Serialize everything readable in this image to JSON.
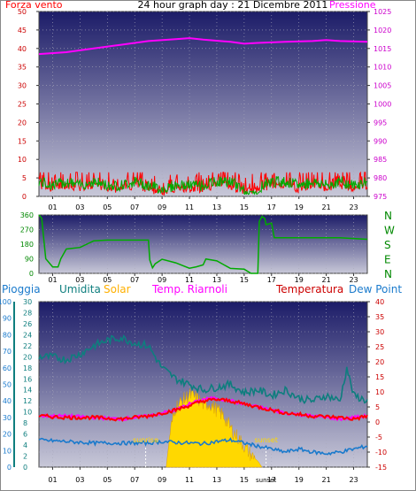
{
  "header": {
    "title": "24 hour graph day : 21 Dicembre 2011",
    "left_label": "Forza vento",
    "right_label": "Pressione"
  },
  "colors": {
    "plot_top": "#1c1c68",
    "plot_bottom": "#c8c8d8",
    "wind": "#ff0000",
    "gust": "#00aa00",
    "pressure": "#ff00ff",
    "direction": "#00aa00",
    "humidity": "#0e7e7e",
    "solar": "#ffd800",
    "riarnoli": "#ff00ff",
    "temperature": "#ff0000",
    "dewpoint": "#1a7acc",
    "rain": "#0e7e7e",
    "axis_green": "#008800"
  },
  "panel1": {
    "left_ticks": [
      "0",
      "5",
      "10",
      "15",
      "20",
      "25",
      "30",
      "35",
      "40",
      "45",
      "50"
    ],
    "right_ticks": [
      "975",
      "980",
      "985",
      "990",
      "995",
      "1000",
      "1005",
      "1010",
      "1015",
      "1020",
      "1025"
    ],
    "x_ticks": [
      "01",
      "03",
      "05",
      "07",
      "09",
      "11",
      "13",
      "15",
      "17",
      "19",
      "21",
      "23"
    ]
  },
  "panel2": {
    "left_ticks": [
      "0",
      "90",
      "180",
      "270",
      "360"
    ],
    "right_letters": [
      "N",
      "W",
      "S",
      "E",
      "N"
    ],
    "x_ticks": [
      "01",
      "03",
      "05",
      "07",
      "09",
      "11",
      "13",
      "15",
      "17",
      "19",
      "21",
      "23"
    ]
  },
  "panel3": {
    "legend": {
      "rain": "Pioggia",
      "humidity": "Umidita",
      "solar": "Solar",
      "riarnoli": "Temp. Riarnoli",
      "temperature": "Temperatura",
      "dewpoint": "Dew Point"
    },
    "rain_ticks": [
      "0",
      "10",
      "20",
      "30",
      "40",
      "50",
      "60",
      "70",
      "80",
      "90",
      "100"
    ],
    "hum_ticks": [
      "0",
      "2",
      "4",
      "6",
      "8",
      "10",
      "12",
      "14",
      "16",
      "18",
      "20",
      "22",
      "24",
      "26",
      "28",
      "30"
    ],
    "temp_ticks": [
      "-15",
      "-10",
      "-5",
      "0",
      "5",
      "10",
      "15",
      "20",
      "25",
      "30",
      "35",
      "40"
    ],
    "x_ticks": [
      "01",
      "03",
      "05",
      "07",
      "09",
      "11",
      "13",
      "15",
      "17",
      "19",
      "21",
      "23"
    ],
    "sunrise_label": "sunrise",
    "sunset_label": "sunset",
    "sunset_axis_label": "sunset"
  },
  "chart_data": [
    {
      "type": "line",
      "title": "24 hour graph day : 21 Dicembre 2011",
      "x_unit": "hour",
      "xlim": [
        0,
        24
      ],
      "ylim_left": [
        0,
        50
      ],
      "ylim_right": [
        975,
        1025
      ],
      "series": [
        {
          "name": "Forza vento",
          "axis": "left",
          "x": [
            0,
            1,
            2,
            3,
            4,
            5,
            6,
            7,
            8,
            9,
            10,
            11,
            12,
            13,
            14,
            15,
            16,
            17,
            18,
            19,
            20,
            21,
            22,
            23,
            24
          ],
          "values": [
            4,
            3,
            4,
            3,
            4,
            3,
            3,
            4,
            3,
            2,
            3,
            3,
            3,
            4,
            4,
            2,
            3,
            4,
            4,
            3,
            4,
            3,
            4,
            3,
            4
          ]
        },
        {
          "name": "Pressione",
          "axis": "right",
          "x": [
            0,
            2,
            4,
            6,
            8,
            10,
            11,
            12,
            14,
            15,
            16,
            18,
            20,
            21,
            22,
            24
          ],
          "values": [
            1013.5,
            1014,
            1015,
            1016,
            1017,
            1017.5,
            1017.8,
            1017.4,
            1016.8,
            1016.3,
            1016.5,
            1016.8,
            1017,
            1017.3,
            1017,
            1016.8
          ]
        }
      ]
    },
    {
      "type": "line",
      "x_unit": "hour",
      "xlim": [
        0,
        24
      ],
      "ylim": [
        0,
        360
      ],
      "y_categories": [
        "N",
        "W",
        "S",
        "E",
        "N"
      ],
      "series": [
        {
          "name": "direction",
          "x": [
            0,
            0.2,
            0.5,
            1,
            1.4,
            1.6,
            2,
            3,
            3.5,
            4,
            5,
            8,
            8.1,
            8.3,
            8.5,
            9,
            10,
            11,
            11.5,
            12,
            12.2,
            13,
            14,
            15,
            15.5,
            16,
            16.1,
            16.3,
            16.5,
            16.6,
            17,
            17.2,
            18,
            19,
            20,
            22,
            23,
            24
          ],
          "values": [
            360,
            340,
            90,
            40,
            40,
            90,
            150,
            160,
            180,
            200,
            205,
            205,
            100,
            60,
            40,
            80,
            40,
            60,
            50,
            70,
            90,
            60,
            40,
            20,
            0,
            0,
            320,
            350,
            340,
            300,
            310,
            220,
            220,
            220,
            220,
            220,
            215,
            210
          ]
        }
      ]
    },
    {
      "type": "line",
      "x_unit": "hour",
      "xlim": [
        0,
        24
      ],
      "ylim_rain": [
        0,
        100
      ],
      "ylim_humidity": [
        0,
        30
      ],
      "ylim_temperature": [
        -15,
        40
      ],
      "series": [
        {
          "name": "Umidita",
          "axis": "humidity",
          "x": [
            0,
            1,
            2,
            3,
            4,
            5,
            6,
            7,
            8,
            9,
            10,
            11,
            12,
            13,
            14,
            15,
            16,
            17,
            18,
            19,
            20,
            21,
            22,
            22.5,
            23,
            24
          ],
          "values": [
            20,
            20,
            19.5,
            20.5,
            22,
            23,
            23.5,
            22.5,
            22,
            18,
            16,
            15,
            14,
            14.5,
            15,
            13.5,
            14,
            13,
            14,
            12.5,
            12,
            13,
            12,
            18,
            13,
            12
          ]
        },
        {
          "name": "Solar",
          "axis": "temperature",
          "type": "area",
          "x": [
            9.3,
            9.6,
            10,
            10.5,
            11,
            11.5,
            12,
            12.5,
            13,
            13.5,
            14,
            14.5,
            15,
            15.5,
            16,
            16.3
          ],
          "values": [
            -15,
            -3,
            5,
            7,
            9,
            8,
            6,
            6,
            4,
            2,
            -2,
            -5,
            -8,
            -11,
            -13,
            -15
          ]
        },
        {
          "name": "Temp. Riarnoli",
          "axis": "temperature",
          "x": [
            0,
            2,
            4,
            6,
            8,
            10,
            11,
            12,
            13,
            14,
            16,
            18,
            20,
            22,
            24
          ],
          "values": [
            2,
            2,
            1.5,
            1,
            2,
            4,
            6,
            7.5,
            8,
            7,
            5,
            3,
            2,
            1,
            2
          ]
        },
        {
          "name": "Temperatura",
          "axis": "temperature",
          "x": [
            0,
            2,
            4,
            6,
            8,
            10,
            11,
            12,
            13,
            14,
            16,
            18,
            20,
            22,
            23,
            24
          ],
          "values": [
            2,
            1.5,
            1.5,
            1,
            2,
            4,
            5.5,
            7,
            7.5,
            7,
            5,
            3,
            2,
            1.5,
            1,
            2
          ]
        },
        {
          "name": "Dew Point",
          "axis": "temperature",
          "x": [
            0,
            2,
            4,
            6,
            8,
            9,
            10,
            11,
            12,
            13,
            14,
            15,
            16,
            17,
            18,
            19,
            20,
            21,
            22,
            23,
            24
          ],
          "values": [
            -6,
            -6.5,
            -7,
            -7,
            -7,
            -6.5,
            -6.8,
            -7,
            -7.2,
            -6.5,
            -6,
            -7,
            -8,
            -9,
            -10,
            -9,
            -10,
            -10.5,
            -10,
            -9,
            -8
          ]
        }
      ],
      "sunrise_hour": 7.8,
      "sunset_hour": 16.6
    }
  ]
}
